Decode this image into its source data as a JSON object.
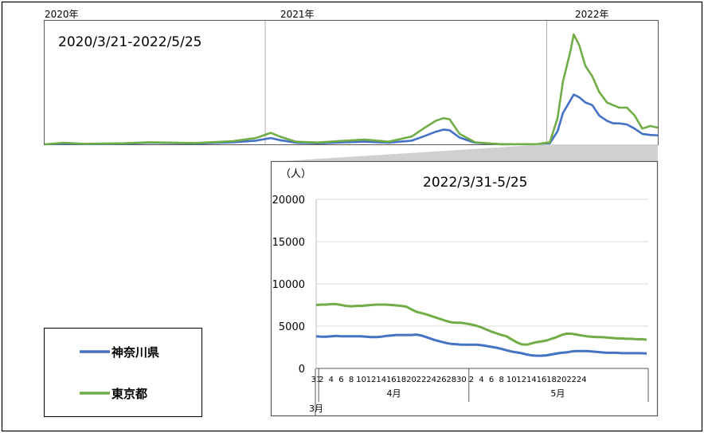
{
  "colors": {
    "kanagawa": "#4472c4",
    "tokyo": "#70ad47",
    "frame": "#000000",
    "grid": "#d9d9d9",
    "shade": "#d0d0d0"
  },
  "overview": {
    "range_label": "2020/3/21-2022/5/25",
    "year_labels": [
      "2020年",
      "2021年",
      "2022年"
    ]
  },
  "legend": {
    "items": [
      "神奈川県",
      "東京都"
    ]
  },
  "chart_data": [
    {
      "type": "line",
      "title": "2020/3/21-2022/5/25",
      "x_start": "2020-03-21",
      "x_end": "2022-05-25",
      "year_boundaries": [
        "2021-01-01",
        "2022-01-01"
      ],
      "ylim": [
        0,
        23000
      ],
      "series": [
        {
          "name": "神奈川県",
          "x": [
            "2020-03-21",
            "2020-04-15",
            "2020-05-10",
            "2020-07-01",
            "2020-08-05",
            "2020-10-01",
            "2020-11-20",
            "2020-12-20",
            "2021-01-08",
            "2021-01-20",
            "2021-02-10",
            "2021-03-10",
            "2021-04-15",
            "2021-05-10",
            "2021-06-10",
            "2021-07-10",
            "2021-07-25",
            "2021-08-10",
            "2021-08-20",
            "2021-08-28",
            "2021-09-10",
            "2021-09-30",
            "2021-11-01",
            "2021-12-20",
            "2022-01-05",
            "2022-01-15",
            "2022-01-22",
            "2022-02-01",
            "2022-02-05",
            "2022-02-12",
            "2022-02-20",
            "2022-03-01",
            "2022-03-10",
            "2022-03-20",
            "2022-03-28",
            "2022-04-05",
            "2022-04-15",
            "2022-04-25",
            "2022-05-05",
            "2022-05-15",
            "2022-05-25"
          ],
          "values": [
            0,
            150,
            50,
            100,
            300,
            150,
            400,
            700,
            1200,
            800,
            300,
            200,
            400,
            500,
            300,
            700,
            1500,
            2400,
            2800,
            2700,
            1300,
            300,
            30,
            30,
            200,
            2500,
            6000,
            8500,
            9500,
            9000,
            8000,
            7500,
            5500,
            4500,
            4000,
            4000,
            3800,
            3000,
            2000,
            1800,
            1700
          ]
        },
        {
          "name": "東京都",
          "x": [
            "2020-03-21",
            "2020-04-15",
            "2020-05-10",
            "2020-07-01",
            "2020-08-05",
            "2020-10-01",
            "2020-11-20",
            "2020-12-20",
            "2021-01-08",
            "2021-01-20",
            "2021-02-10",
            "2021-03-10",
            "2021-04-15",
            "2021-05-10",
            "2021-06-10",
            "2021-07-10",
            "2021-07-25",
            "2021-08-10",
            "2021-08-20",
            "2021-08-28",
            "2021-09-10",
            "2021-09-30",
            "2021-11-01",
            "2021-12-20",
            "2022-01-05",
            "2022-01-15",
            "2022-01-22",
            "2022-02-01",
            "2022-02-05",
            "2022-02-12",
            "2022-02-20",
            "2022-03-01",
            "2022-03-10",
            "2022-03-20",
            "2022-03-28",
            "2022-04-05",
            "2022-04-15",
            "2022-04-25",
            "2022-05-05",
            "2022-05-15",
            "2022-05-25"
          ],
          "values": [
            0,
            300,
            100,
            200,
            400,
            250,
            600,
            1200,
            2200,
            1500,
            500,
            350,
            700,
            900,
            500,
            1500,
            3000,
            4500,
            5000,
            4800,
            2000,
            400,
            30,
            40,
            400,
            5000,
            12000,
            18000,
            21000,
            19000,
            15000,
            13000,
            10000,
            8000,
            7500,
            7000,
            7000,
            5500,
            3000,
            3500,
            3200
          ]
        }
      ]
    },
    {
      "type": "line",
      "title": "2022/3/31-5/25",
      "ylabel": "（人）",
      "ylim": [
        0,
        20000
      ],
      "yticks": [
        0,
        5000,
        10000,
        15000,
        20000
      ],
      "x_start": "2022-03-31",
      "x_end": "2022-05-25",
      "xtick_labels": [
        "31",
        "2",
        "4",
        "6",
        "8",
        "10",
        "12",
        "14",
        "16",
        "18",
        "20",
        "22",
        "24",
        "26",
        "28",
        "30",
        "2",
        "4",
        "6",
        "8",
        "10",
        "12",
        "14",
        "16",
        "18",
        "20",
        "22",
        "24"
      ],
      "month_labels": [
        "3月",
        "4月",
        "5月"
      ],
      "series": [
        {
          "name": "神奈川県",
          "values": [
            3800,
            3750,
            3750,
            3800,
            3850,
            3800,
            3800,
            3800,
            3800,
            3800,
            3750,
            3700,
            3700,
            3750,
            3850,
            3900,
            3950,
            3950,
            3950,
            3950,
            4000,
            3900,
            3700,
            3500,
            3300,
            3150,
            3000,
            2900,
            2850,
            2800,
            2800,
            2800,
            2800,
            2750,
            2650,
            2550,
            2450,
            2300,
            2150,
            2000,
            1900,
            1800,
            1650,
            1550,
            1500,
            1500,
            1550,
            1650,
            1750,
            1850,
            1900,
            2000,
            2050,
            2050,
            2050,
            2000,
            1950,
            1900,
            1850,
            1850,
            1850,
            1800,
            1800,
            1800,
            1800,
            1800,
            1750
          ]
        },
        {
          "name": "東京都",
          "values": [
            7500,
            7550,
            7550,
            7600,
            7600,
            7500,
            7400,
            7350,
            7400,
            7400,
            7450,
            7500,
            7550,
            7550,
            7550,
            7500,
            7450,
            7400,
            7300,
            7000,
            6700,
            6550,
            6400,
            6200,
            6000,
            5800,
            5600,
            5450,
            5400,
            5400,
            5300,
            5200,
            5050,
            4850,
            4600,
            4350,
            4150,
            3950,
            3800,
            3450,
            3100,
            2850,
            2800,
            2950,
            3100,
            3200,
            3300,
            3500,
            3700,
            3950,
            4100,
            4100,
            4000,
            3900,
            3800,
            3750,
            3700,
            3700,
            3650,
            3600,
            3550,
            3550,
            3500,
            3500,
            3450,
            3450,
            3400
          ]
        }
      ]
    }
  ]
}
